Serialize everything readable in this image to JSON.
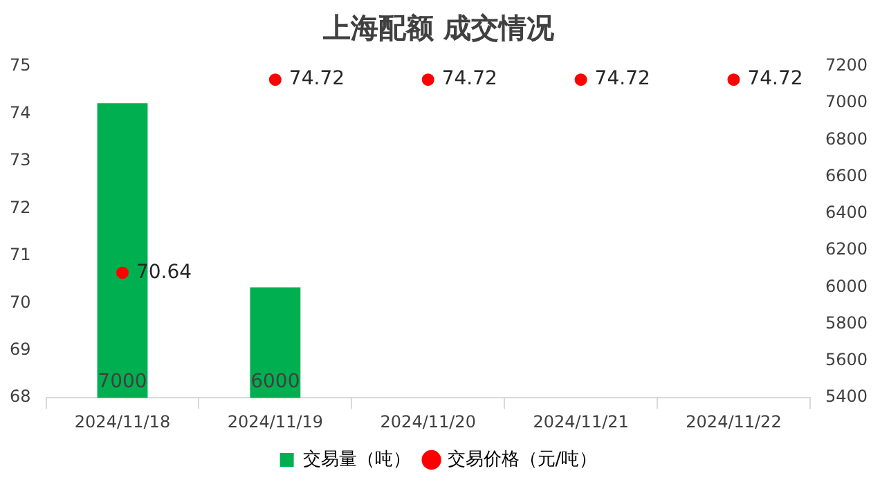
{
  "chart_data": {
    "type": "bar",
    "title": "上海配额 成交情况",
    "categories": [
      "2024/11/18",
      "2024/11/19",
      "2024/11/20",
      "2024/11/21",
      "2024/11/22"
    ],
    "series": [
      {
        "name": "交易量（吨）",
        "axis": "y2",
        "color": "#00b050",
        "values": [
          7000,
          6000,
          null,
          null,
          null
        ]
      },
      {
        "name": "交易价格（元/吨）",
        "type": "scatter",
        "axis": "y",
        "color": "#ff0000",
        "marker": "circle",
        "values": [
          70.64,
          74.72,
          74.72,
          74.72,
          74.72
        ]
      }
    ],
    "ylim": [
      68,
      75
    ],
    "yticks": [
      68,
      69,
      70,
      71,
      72,
      73,
      74,
      75
    ],
    "y2lim": [
      5400,
      7200
    ],
    "y2ticks": [
      5400,
      5600,
      5800,
      6000,
      6200,
      6400,
      6600,
      6800,
      7000,
      7200
    ],
    "data_labels": true,
    "legend": "bottom",
    "grid": false
  }
}
